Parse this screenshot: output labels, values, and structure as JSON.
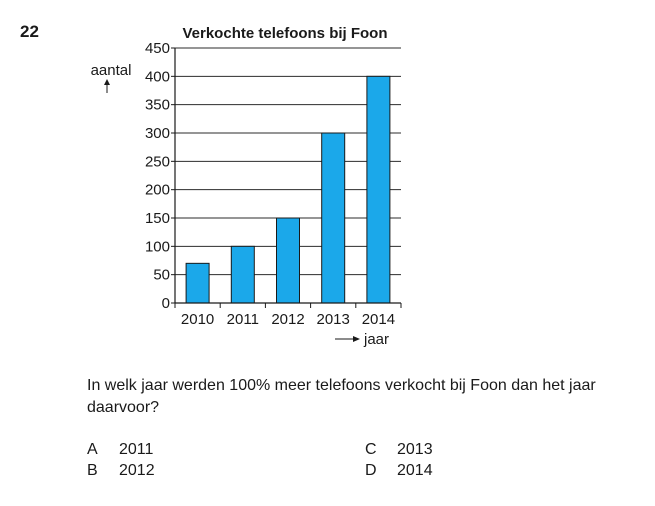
{
  "question_number": "22",
  "chart_data": {
    "type": "bar",
    "title": "Verkochte telefoons bij Foon",
    "ylabel": "aantal",
    "xlabel": "jaar",
    "categories": [
      "2010",
      "2011",
      "2012",
      "2013",
      "2014"
    ],
    "values": [
      70,
      100,
      150,
      300,
      400
    ],
    "ylim": [
      0,
      450
    ],
    "yticks": [
      0,
      50,
      100,
      150,
      200,
      250,
      300,
      350,
      400,
      450
    ],
    "grid": true,
    "bar_color": "#1ba8ea"
  },
  "question_text": "In welk jaar werden 100% meer telefoons verkocht bij Foon dan het jaar daarvoor?",
  "options": [
    {
      "letter": "A",
      "text": "2011"
    },
    {
      "letter": "B",
      "text": "2012"
    },
    {
      "letter": "C",
      "text": "2013"
    },
    {
      "letter": "D",
      "text": "2014"
    }
  ]
}
